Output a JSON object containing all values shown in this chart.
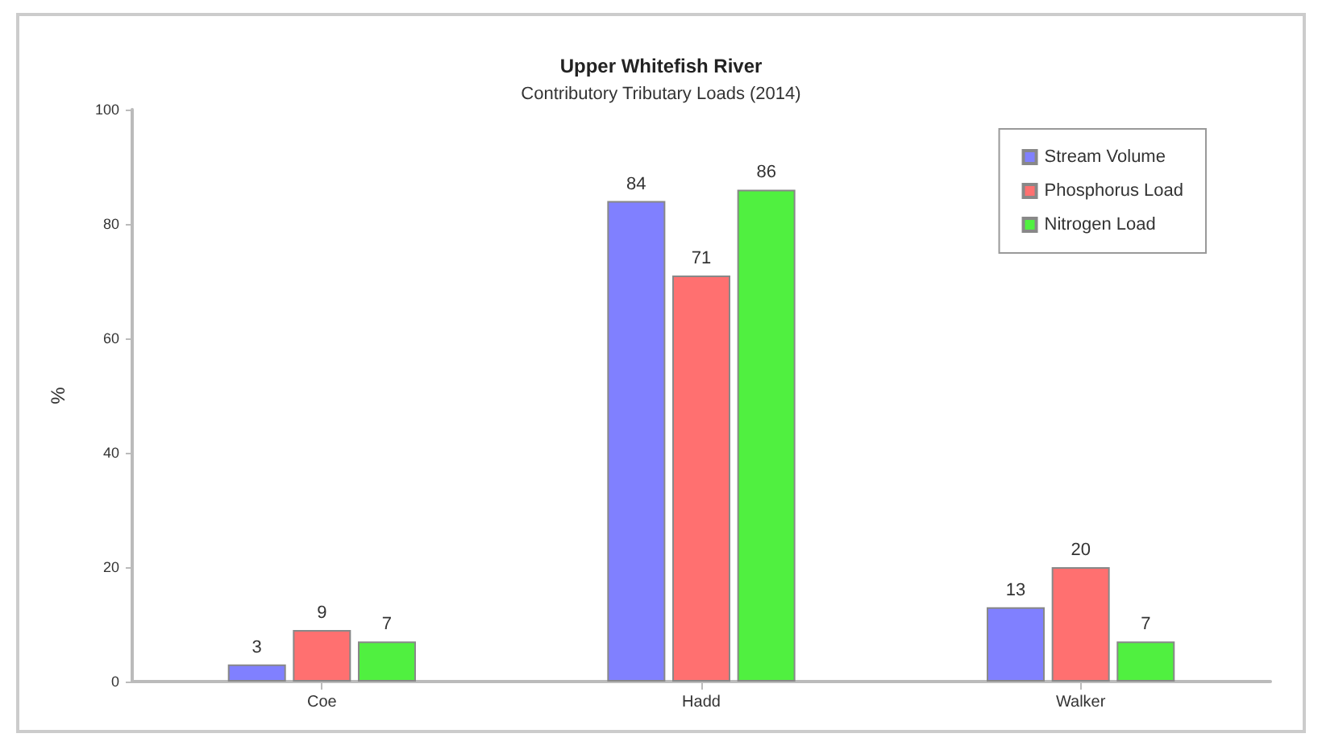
{
  "chart_data": {
    "type": "bar",
    "title": "Upper Whitefish River",
    "subtitle": "Contributory Tributary Loads (2014)",
    "ylabel": "%",
    "categories": [
      "Coe",
      "Hadd",
      "Walker"
    ],
    "series": [
      {
        "name": "Stream Volume",
        "color": "#8080ff",
        "values": [
          3,
          84,
          13
        ]
      },
      {
        "name": "Phosphorus Load",
        "color": "#ff7070",
        "values": [
          9,
          71,
          20
        ]
      },
      {
        "name": "Nitrogen Load",
        "color": "#50f040",
        "values": [
          7,
          86,
          7
        ]
      }
    ],
    "ylim": [
      0,
      100
    ],
    "yticks": [
      0,
      20,
      40,
      60,
      80,
      100
    ],
    "data_labels": true,
    "legend": "top right",
    "grid": false
  }
}
